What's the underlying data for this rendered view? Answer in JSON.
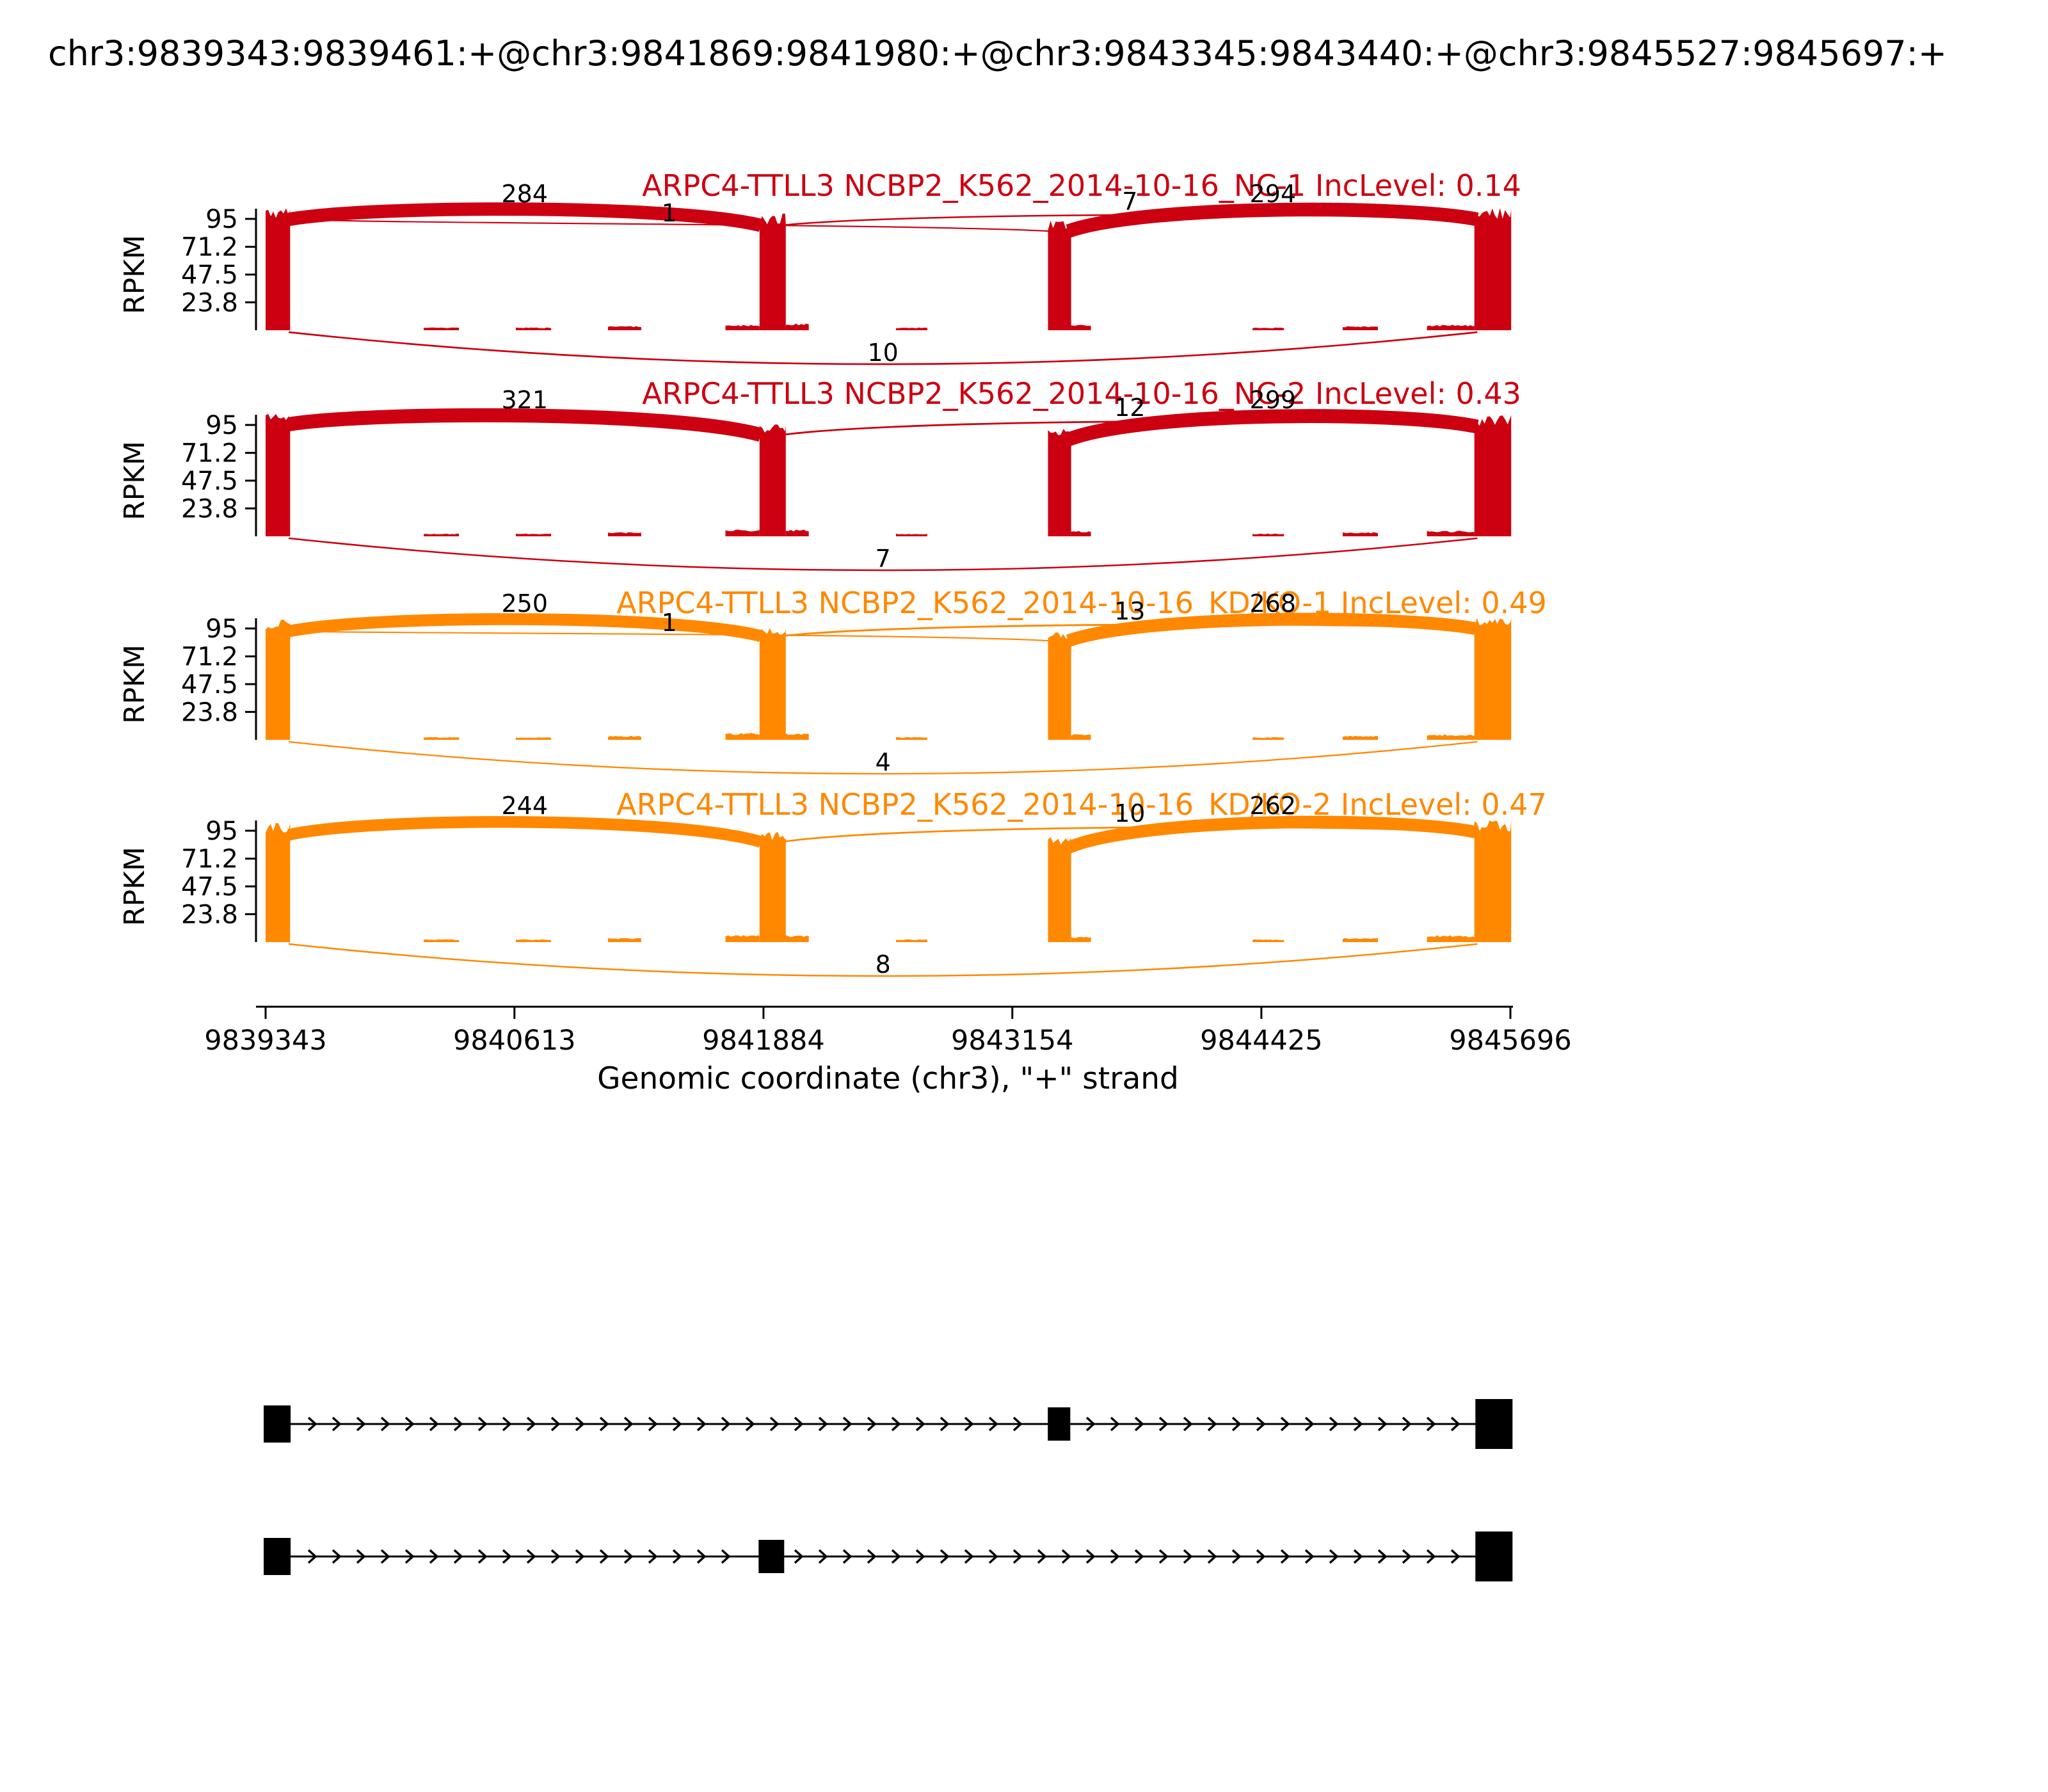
{
  "figure": {
    "title": "chr3:9839343:9839461:+@chr3:9841869:9841980:+@chr3:9843345:9843440:+@chr3:9845527:9845697:+",
    "xlabel": "Genomic coordinate (chr3), \"+\" strand",
    "ylabel": "RPKM",
    "strand": "+",
    "chromosome": "chr3"
  },
  "chart_data": {
    "type": "area",
    "subtype": "sashimi-plot",
    "title": "chr3:9839343:9839461:+@chr3:9841869:9841980:+@chr3:9843345:9843440:+@chr3:9845527:9845697:+",
    "xlabel": "Genomic coordinate (chr3), \"+\" strand",
    "ylabel": "RPKM",
    "x_domain": [
      9839343,
      9845696
    ],
    "x_ticks": [
      9839343,
      9840613,
      9841884,
      9843154,
      9844425,
      9845696
    ],
    "y_ticks": [
      95,
      71.2,
      47.5,
      23.8
    ],
    "y_max": 107,
    "group_colors": {
      "NC": "#CC0011",
      "KD_KO": "#FF8800"
    },
    "event_exons": [
      [
        9839343,
        9839461
      ],
      [
        9841869,
        9841980
      ],
      [
        9843345,
        9843440
      ],
      [
        9845527,
        9845697
      ]
    ],
    "tracks": [
      {
        "label": "ARPC4-TTLL3 NCBP2_K562_2014-10-16_NC-1 IncLevel: 0.14",
        "inc_level": 0.14,
        "color": "#CC0011",
        "coverage": [
          {
            "s": 9839343,
            "e": 9839468,
            "h": 100
          },
          {
            "s": 9840150,
            "e": 9840330,
            "h": 2
          },
          {
            "s": 9840620,
            "e": 9840800,
            "h": 2
          },
          {
            "s": 9841090,
            "e": 9841260,
            "h": 3
          },
          {
            "s": 9841690,
            "e": 9841864,
            "h": 4
          },
          {
            "s": 9841864,
            "e": 9841998,
            "h": 95
          },
          {
            "s": 9841998,
            "e": 9842115,
            "h": 5
          },
          {
            "s": 9842560,
            "e": 9842720,
            "h": 2
          },
          {
            "s": 9843336,
            "e": 9843454,
            "h": 90
          },
          {
            "s": 9843454,
            "e": 9843555,
            "h": 4
          },
          {
            "s": 9844380,
            "e": 9844540,
            "h": 2
          },
          {
            "s": 9844840,
            "e": 9845020,
            "h": 3
          },
          {
            "s": 9845270,
            "e": 9845512,
            "h": 4
          },
          {
            "s": 9845512,
            "e": 9845700,
            "h": 100
          }
        ],
        "junctions": [
          {
            "from": 9839461,
            "to": 9841869,
            "count": 284,
            "side": "top"
          },
          {
            "from": 9839461,
            "to": 9843345,
            "count": 1,
            "side": "top"
          },
          {
            "from": 9841980,
            "to": 9845527,
            "count": 7,
            "side": "top"
          },
          {
            "from": 9843440,
            "to": 9845527,
            "count": 294,
            "side": "top"
          },
          {
            "from": 9839461,
            "to": 9845527,
            "count": 10,
            "side": "bottom"
          }
        ]
      },
      {
        "label": "ARPC4-TTLL3 NCBP2_K562_2014-10-16_NC-2 IncLevel: 0.43",
        "inc_level": 0.43,
        "color": "#CC0011",
        "coverage": [
          {
            "s": 9839343,
            "e": 9839468,
            "h": 101
          },
          {
            "s": 9840150,
            "e": 9840330,
            "h": 2
          },
          {
            "s": 9840620,
            "e": 9840800,
            "h": 2
          },
          {
            "s": 9841090,
            "e": 9841260,
            "h": 3
          },
          {
            "s": 9841690,
            "e": 9841864,
            "h": 5
          },
          {
            "s": 9841864,
            "e": 9841998,
            "h": 92
          },
          {
            "s": 9841998,
            "e": 9842115,
            "h": 5
          },
          {
            "s": 9842560,
            "e": 9842720,
            "h": 2
          },
          {
            "s": 9843336,
            "e": 9843454,
            "h": 88
          },
          {
            "s": 9843454,
            "e": 9843555,
            "h": 4
          },
          {
            "s": 9844380,
            "e": 9844540,
            "h": 2
          },
          {
            "s": 9844840,
            "e": 9845020,
            "h": 3
          },
          {
            "s": 9845270,
            "e": 9845512,
            "h": 4
          },
          {
            "s": 9845512,
            "e": 9845700,
            "h": 99
          }
        ],
        "junctions": [
          {
            "from": 9839461,
            "to": 9841869,
            "count": 321,
            "side": "top"
          },
          {
            "from": 9841980,
            "to": 9845527,
            "count": 12,
            "side": "top"
          },
          {
            "from": 9843440,
            "to": 9845527,
            "count": 299,
            "side": "top"
          },
          {
            "from": 9839461,
            "to": 9845527,
            "count": 7,
            "side": "bottom"
          }
        ]
      },
      {
        "label": "ARPC4-TTLL3 NCBP2_K562_2014-10-16_KD/KO-1 IncLevel: 0.49",
        "inc_level": 0.49,
        "color": "#FF8800",
        "coverage": [
          {
            "s": 9839343,
            "e": 9839468,
            "h": 98
          },
          {
            "s": 9840150,
            "e": 9840330,
            "h": 2
          },
          {
            "s": 9840620,
            "e": 9840800,
            "h": 2
          },
          {
            "s": 9841090,
            "e": 9841260,
            "h": 3
          },
          {
            "s": 9841690,
            "e": 9841864,
            "h": 5
          },
          {
            "s": 9841864,
            "e": 9841998,
            "h": 94
          },
          {
            "s": 9841998,
            "e": 9842115,
            "h": 5
          },
          {
            "s": 9842560,
            "e": 9842720,
            "h": 2
          },
          {
            "s": 9843336,
            "e": 9843454,
            "h": 90
          },
          {
            "s": 9843454,
            "e": 9843555,
            "h": 4
          },
          {
            "s": 9844380,
            "e": 9844540,
            "h": 2
          },
          {
            "s": 9844840,
            "e": 9845020,
            "h": 3
          },
          {
            "s": 9845270,
            "e": 9845512,
            "h": 4
          },
          {
            "s": 9845512,
            "e": 9845700,
            "h": 100
          }
        ],
        "junctions": [
          {
            "from": 9839461,
            "to": 9841869,
            "count": 250,
            "side": "top"
          },
          {
            "from": 9839461,
            "to": 9843345,
            "count": 1,
            "side": "top"
          },
          {
            "from": 9841980,
            "to": 9845527,
            "count": 13,
            "side": "top"
          },
          {
            "from": 9843440,
            "to": 9845527,
            "count": 268,
            "side": "top"
          },
          {
            "from": 9839461,
            "to": 9845527,
            "count": 4,
            "side": "bottom"
          }
        ]
      },
      {
        "label": "ARPC4-TTLL3 NCBP2_K562_2014-10-16_KD/KO-2 IncLevel: 0.47",
        "inc_level": 0.47,
        "color": "#FF8800",
        "coverage": [
          {
            "s": 9839343,
            "e": 9839468,
            "h": 97
          },
          {
            "s": 9840150,
            "e": 9840330,
            "h": 2
          },
          {
            "s": 9840620,
            "e": 9840800,
            "h": 2
          },
          {
            "s": 9841090,
            "e": 9841260,
            "h": 3
          },
          {
            "s": 9841690,
            "e": 9841864,
            "h": 5
          },
          {
            "s": 9841864,
            "e": 9841998,
            "h": 91
          },
          {
            "s": 9841998,
            "e": 9842115,
            "h": 5
          },
          {
            "s": 9842560,
            "e": 9842720,
            "h": 2
          },
          {
            "s": 9843336,
            "e": 9843454,
            "h": 86
          },
          {
            "s": 9843454,
            "e": 9843555,
            "h": 4
          },
          {
            "s": 9844380,
            "e": 9844540,
            "h": 2
          },
          {
            "s": 9844840,
            "e": 9845020,
            "h": 3
          },
          {
            "s": 9845270,
            "e": 9845512,
            "h": 5
          },
          {
            "s": 9845512,
            "e": 9845700,
            "h": 99
          }
        ],
        "junctions": [
          {
            "from": 9839461,
            "to": 9841869,
            "count": 244,
            "side": "top"
          },
          {
            "from": 9841980,
            "to": 9845527,
            "count": 10,
            "side": "top"
          },
          {
            "from": 9843440,
            "to": 9845527,
            "count": 262,
            "side": "top"
          },
          {
            "from": 9839461,
            "to": 9845527,
            "count": 8,
            "side": "bottom"
          }
        ]
      }
    ],
    "transcripts": [
      {
        "exons": [
          [
            9839343,
            9839461
          ],
          [
            9843345,
            9843440
          ],
          [
            9845527,
            9845697
          ]
        ]
      },
      {
        "exons": [
          [
            9839343,
            9839461
          ],
          [
            9841869,
            9841980
          ],
          [
            9845527,
            9845697
          ]
        ]
      }
    ]
  }
}
